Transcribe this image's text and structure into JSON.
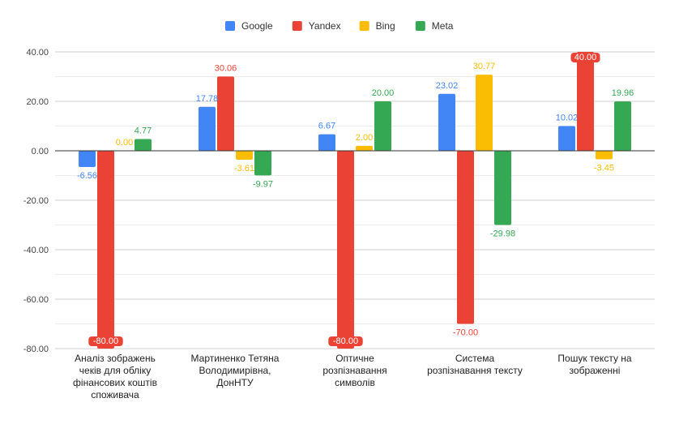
{
  "chart_data": {
    "type": "bar",
    "title": "",
    "xlabel": "",
    "ylabel": "",
    "ylim": [
      -80,
      40
    ],
    "yticks": [
      40,
      20,
      0,
      -20,
      -40,
      -60,
      -80
    ],
    "ytick_labels": [
      "40.00",
      "20.00",
      "0.00",
      "-20.00",
      "-40.00",
      "-60.00",
      "-80.00"
    ],
    "grid": true,
    "legend_position": "top",
    "categories": [
      [
        "Аналіз зображень",
        "чеків для обліку",
        "фінансових коштів",
        "споживача"
      ],
      [
        "Мартиненко Тетяна",
        "Володимирівна,",
        "ДонНТУ"
      ],
      [
        "Оптичне",
        "розпізнавання",
        "символів"
      ],
      [
        "Система",
        "розпізнавання тексту"
      ],
      [
        "Пошук тексту на",
        "зображенні"
      ]
    ],
    "series": [
      {
        "name": "Google",
        "color": "#4285f4",
        "values": [
          -6.56,
          17.78,
          6.67,
          23.02,
          10.02
        ],
        "labels": [
          "-6.56",
          "17.78",
          "6.67",
          "23.02",
          "10.02"
        ]
      },
      {
        "name": "Yandex",
        "color": "#ea4335",
        "values": [
          -80.0,
          30.06,
          -80.0,
          -70.0,
          40.0
        ],
        "labels": [
          "-80.00",
          "30.06",
          "-80.00",
          "-70.00",
          "40.00"
        ]
      },
      {
        "name": "Bing",
        "color": "#fbbc04",
        "values": [
          0.0,
          -3.61,
          2.0,
          30.77,
          -3.45
        ],
        "labels": [
          "0.00",
          "-3.61",
          "2.00",
          "30.77",
          "-3.45"
        ]
      },
      {
        "name": "Meta",
        "color": "#34a853",
        "values": [
          4.77,
          -9.97,
          20.0,
          -29.98,
          19.96
        ],
        "labels": [
          "4.77",
          "-9.97",
          "20.00",
          "-29.98",
          "19.96"
        ]
      }
    ]
  }
}
